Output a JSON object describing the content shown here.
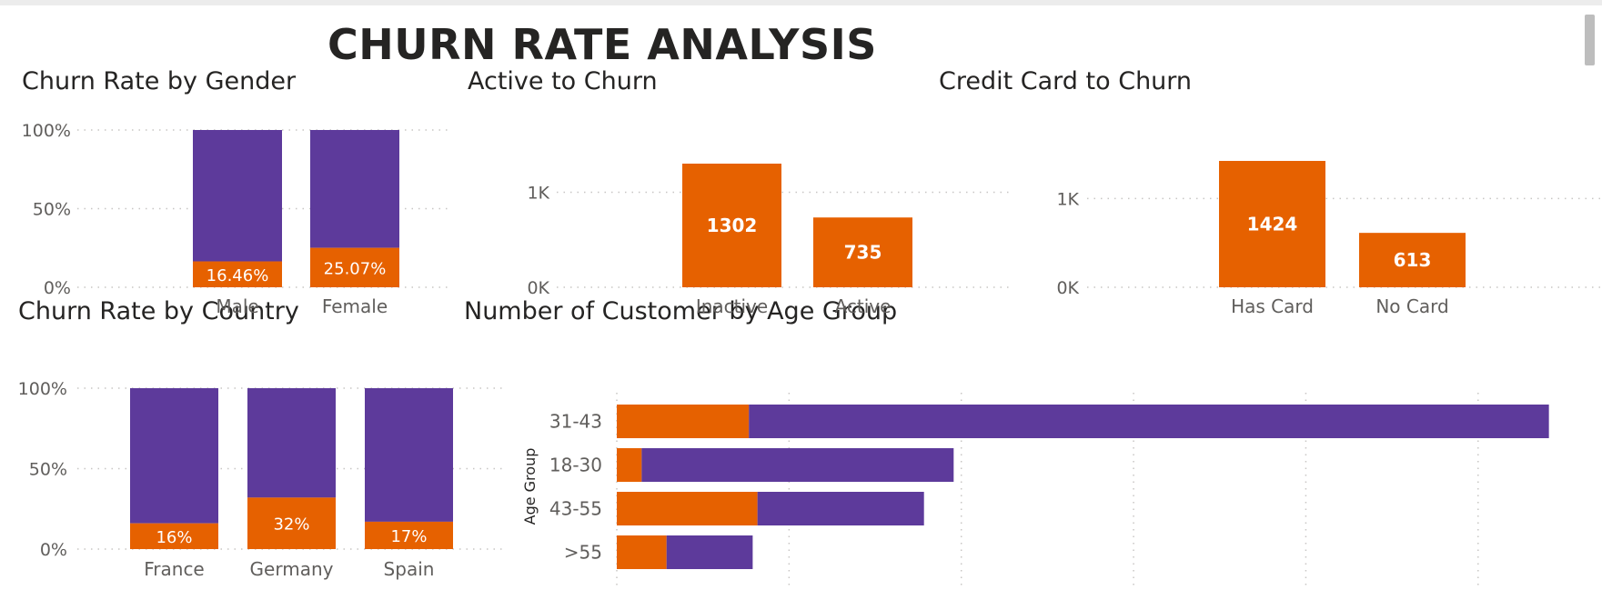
{
  "page_title": "CHURN RATE ANALYSIS",
  "colors": {
    "churn": "#E66100",
    "retained": "#5D3A9B",
    "grid": "#c8c6c4",
    "text": "#605e5c"
  },
  "chart_data": [
    {
      "id": "gender",
      "type": "bar",
      "stacked": "percent",
      "title": "Churn Rate by Gender",
      "categories": [
        "Male",
        "Female"
      ],
      "series": [
        {
          "values": [
            16.46,
            25.07
          ],
          "labels": [
            "16.46%",
            "25.07%"
          ]
        },
        {
          "values": [
            83.54,
            74.93
          ]
        }
      ],
      "yticks": [
        "0%",
        "50%",
        "100%"
      ],
      "ylim": [
        0,
        100
      ],
      "grid": true
    },
    {
      "id": "active",
      "type": "bar",
      "title": "Active to Churn",
      "categories": [
        "Inactive",
        "Active"
      ],
      "values": [
        1302,
        735
      ],
      "labels": [
        "1302",
        "735"
      ],
      "yticks": [
        "0K",
        "1K"
      ],
      "ylim": [
        0,
        1302
      ],
      "grid": true
    },
    {
      "id": "card",
      "type": "bar",
      "title": "Credit Card to Churn",
      "categories": [
        "Has Card",
        "No Card"
      ],
      "values": [
        1424,
        613
      ],
      "labels": [
        "1424",
        "613"
      ],
      "yticks": [
        "0K",
        "1K"
      ],
      "ylim": [
        0,
        1424
      ],
      "grid": true
    },
    {
      "id": "country",
      "type": "bar",
      "stacked": "percent",
      "title": "Churn Rate by Country",
      "categories": [
        "France",
        "Germany",
        "Spain"
      ],
      "series": [
        {
          "values": [
            16,
            32,
            17
          ],
          "labels": [
            "16%",
            "32%",
            "17%"
          ]
        },
        {
          "values": [
            84,
            68,
            83
          ]
        }
      ],
      "yticks": [
        "0%",
        "50%",
        "100%"
      ],
      "ylim": [
        0,
        100
      ],
      "grid": true
    },
    {
      "id": "age",
      "type": "bar",
      "orientation": "horizontal",
      "stacked": true,
      "title": "Number of Customer by Age Group",
      "ylabel": "Age Group",
      "categories": [
        "31-43",
        "18-30",
        "43-55",
        ">55"
      ],
      "series": [
        {
          "values": [
            690,
            130,
            735,
            260
          ]
        },
        {
          "values": [
            4180,
            1630,
            870,
            450
          ]
        }
      ],
      "xlim": [
        0,
        5000
      ],
      "gridlines_x": [
        0,
        900,
        1800,
        2700,
        3600,
        4500
      ],
      "grid": true
    }
  ]
}
